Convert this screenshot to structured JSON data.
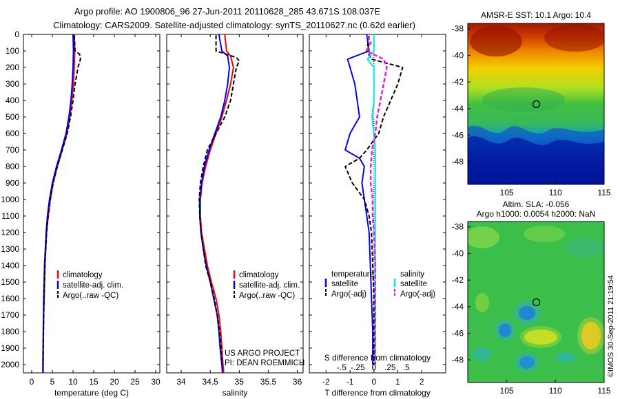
{
  "header": {
    "title_line1": "Argo profile: AO 1900806_96 27-Jun-2011 20110628_285 43.671S 108.037E",
    "title_line2": "Climatology: CARS2009. Satellite-adjusted climatology: synTS_20110627.nc (0.62d earlier)"
  },
  "panels": {
    "temperature": {
      "xlabel": "temperature (deg C)"
    },
    "salinity": {
      "xlabel": "salinity"
    },
    "difference": {
      "xlabel": "T difference from climatology",
      "top_label": "S difference from climatology"
    }
  },
  "legend_tp": {
    "items": [
      "climatology",
      "satellite-adj. clim.",
      "Argo(..raw -QC)"
    ]
  },
  "legend_diff": {
    "temp_head": "temperature",
    "sal_head": "salinity",
    "temp_items": [
      "satellite",
      "Argo(-adj)"
    ],
    "sal_items": [
      "satellite",
      "Argo(-adj)"
    ]
  },
  "project_text": {
    "line1": "US ARGO PROJECT",
    "line2": "PI: DEAN ROEMMICH"
  },
  "maps": {
    "sst_title": "AMSR-E SST: 10.1  Argo: 10.4",
    "sla_title1": "Altim. SLA: -0.056",
    "sla_title2": "Argo h1000: 0.0054 h2000: NaN",
    "marker_lon": 108.037,
    "marker_lat": -43.671
  },
  "imos_stamp": "©IMOS 30-Sep-2011 21:19:54",
  "colors": {
    "climatology": "#ff0000",
    "satellite": "#0000ff",
    "argo": "#000000",
    "sal_satellite": "#00e5e5",
    "sal_argo": "#e020e0"
  },
  "chart_data": [
    {
      "type": "line",
      "panel": "temperature",
      "xlabel": "temperature (deg C)",
      "ylabel": "",
      "xlim": [
        -2,
        31
      ],
      "ylim": [
        2050,
        0
      ],
      "xticks": [
        0,
        5,
        10,
        15,
        20,
        25,
        30
      ],
      "yticks": [
        0,
        100,
        200,
        300,
        400,
        500,
        600,
        700,
        800,
        900,
        1000,
        1100,
        1200,
        1300,
        1400,
        1500,
        1600,
        1700,
        1800,
        1900,
        2000
      ],
      "depth": [
        0,
        100,
        200,
        300,
        400,
        500,
        600,
        700,
        800,
        900,
        1000,
        1100,
        1200,
        1300,
        1400,
        1500,
        1600,
        1700,
        1800,
        1900,
        2000,
        2050
      ],
      "series": [
        {
          "name": "climatology",
          "values": [
            10.3,
            10.4,
            10.3,
            10.1,
            9.7,
            9.2,
            8.5,
            7.4,
            6.2,
            5.2,
            4.5,
            4.0,
            3.6,
            3.4,
            3.2,
            3.1,
            3.0,
            2.9,
            2.85,
            2.8,
            2.8,
            2.8
          ]
        },
        {
          "name": "satellite-adj. clim.",
          "values": [
            10.0,
            10.1,
            10.0,
            9.8,
            9.5,
            9.0,
            8.3,
            7.2,
            6.0,
            5.0,
            4.3,
            3.8,
            3.5,
            3.3,
            3.1,
            3.0,
            2.9,
            2.85,
            2.8,
            2.75,
            2.7,
            2.7
          ]
        },
        {
          "name": "Argo(..raw -QC)",
          "depth": [
            5,
            100,
            120,
            150,
            200,
            300,
            400,
            500,
            600,
            700,
            800,
            900,
            1000,
            1100,
            1200,
            1300,
            1400,
            1500,
            1600,
            1700,
            1800,
            1900,
            2000
          ],
          "values": [
            10.3,
            10.5,
            11.6,
            11.8,
            11.2,
            10.5,
            10.0,
            9.4,
            8.6,
            7.4,
            6.2,
            5.2,
            4.5,
            4.0,
            3.6,
            3.4,
            3.2,
            3.1,
            3.0,
            2.9,
            2.85,
            2.8,
            2.75
          ]
        }
      ]
    },
    {
      "type": "line",
      "panel": "salinity",
      "xlabel": "salinity",
      "ylabel": "",
      "xlim": [
        33.75,
        36.1
      ],
      "ylim": [
        2050,
        0
      ],
      "xticks": [
        34,
        34.5,
        35,
        35.5,
        36
      ],
      "depth": [
        0,
        100,
        130,
        200,
        300,
        400,
        500,
        600,
        700,
        800,
        900,
        1000,
        1100,
        1200,
        1300,
        1400,
        1500,
        1600,
        1700,
        1800,
        1900,
        2000,
        2050
      ],
      "series": [
        {
          "name": "climatology",
          "values": [
            34.75,
            34.78,
            34.85,
            34.9,
            34.85,
            34.78,
            34.7,
            34.6,
            34.5,
            34.42,
            34.36,
            34.33,
            34.33,
            34.35,
            34.4,
            34.45,
            34.52,
            34.6,
            34.65,
            34.68,
            34.7,
            34.72,
            34.73
          ]
        },
        {
          "name": "satellite-adj. clim.",
          "values": [
            34.65,
            34.7,
            34.8,
            34.83,
            34.8,
            34.75,
            34.68,
            34.58,
            34.48,
            34.4,
            34.35,
            34.32,
            34.32,
            34.34,
            34.38,
            34.43,
            34.5,
            34.56,
            34.62,
            34.65,
            34.67,
            34.7,
            34.71
          ]
        },
        {
          "name": "Argo(..raw -QC)",
          "depth": [
            5,
            50,
            100,
            140,
            160,
            200,
            300,
            400,
            500,
            600,
            700,
            800,
            900,
            1000,
            1100,
            1200,
            1300,
            1400,
            1500,
            1600,
            1700,
            1800,
            1900,
            2000
          ],
          "values": [
            34.6,
            34.6,
            34.6,
            34.95,
            35.0,
            34.95,
            34.9,
            34.85,
            34.75,
            34.6,
            34.45,
            34.38,
            34.33,
            34.31,
            34.32,
            34.34,
            34.38,
            34.42,
            34.5,
            34.57,
            34.62,
            34.66,
            34.69,
            34.7
          ]
        }
      ]
    },
    {
      "type": "line",
      "panel": "difference",
      "xlabel": "T difference from climatology",
      "ylabel": "",
      "xlim": [
        -2.7,
        3.0
      ],
      "ylim": [
        2050,
        0
      ],
      "xticks": [
        -2,
        -1,
        0,
        1,
        2
      ],
      "top_axis": {
        "label": "S difference from climatology",
        "ticks": [
          -0.5,
          -0.25,
          0,
          0.25,
          0.5
        ]
      },
      "series": [
        {
          "name": "temperature satellite",
          "depth": [
            0,
            100,
            150,
            200,
            300,
            400,
            500,
            600,
            700,
            750,
            800,
            900,
            1000,
            1100,
            1200,
            1400,
            1600,
            1800,
            2000
          ],
          "values": [
            -0.3,
            -0.2,
            -1.1,
            -1.0,
            -0.8,
            -0.7,
            -0.6,
            -1.0,
            -1.2,
            -0.6,
            -0.4,
            -0.5,
            -0.4,
            -0.3,
            -0.2,
            -0.15,
            -0.1,
            -0.05,
            -0.05
          ]
        },
        {
          "name": "temperature Argo(-adj)",
          "depth": [
            10,
            100,
            150,
            200,
            300,
            400,
            500,
            600,
            700,
            750,
            800,
            900,
            1000,
            1100,
            1200,
            1400,
            1600,
            1800,
            2000
          ],
          "values": [
            -0.2,
            -0.3,
            -0.1,
            1.2,
            1.0,
            0.7,
            0.4,
            0.2,
            -0.3,
            -0.6,
            -1.2,
            -0.9,
            -0.4,
            -0.2,
            -0.1,
            -0.05,
            0,
            0,
            0
          ]
        },
        {
          "name": "salinity satellite",
          "depth": [
            0,
            100,
            150,
            200,
            300,
            400,
            500,
            600,
            700,
            800,
            900,
            1000,
            1200,
            1400,
            1600,
            1800,
            2000
          ],
          "values": [
            0,
            0,
            -0.1,
            0,
            0,
            0,
            -0.03,
            0,
            0.02,
            0.02,
            0.02,
            0.02,
            0.02,
            0.02,
            0.02,
            0.02,
            0.02
          ]
        },
        {
          "name": "salinity Argo(-adj)",
          "depth": [
            10,
            50,
            100,
            150,
            200,
            300,
            400,
            500,
            600,
            700,
            800,
            900,
            1000,
            1100,
            1200,
            1400,
            1600,
            1800,
            2000
          ],
          "values": [
            -0.1,
            -0.05,
            -0.12,
            0.15,
            0.2,
            0.15,
            0.1,
            0.05,
            0.02,
            -0.03,
            -0.05,
            -0.05,
            -0.02,
            -0.02,
            0,
            0.02,
            0.02,
            0.02,
            0.02
          ]
        }
      ]
    },
    {
      "type": "heatmap",
      "panel": "sst_map",
      "title": "AMSR-E SST: 10.1  Argo: 10.4",
      "xlim": [
        101,
        115
      ],
      "ylim": [
        -49.7,
        -37.6
      ],
      "xticks": [
        105,
        110,
        115
      ],
      "yticks": [
        -38,
        -40,
        -42,
        -44,
        -46,
        -48
      ]
    },
    {
      "type": "heatmap",
      "panel": "sla_map",
      "title": "Altim. SLA: -0.056",
      "subtitle": "Argo h1000: 0.0054 h2000: NaN",
      "xlim": [
        101,
        115
      ],
      "ylim": [
        -49.7,
        -37.6
      ],
      "xticks": [
        105,
        110,
        115
      ],
      "yticks": [
        -38,
        -40,
        -42,
        -44,
        -46,
        -48
      ]
    }
  ]
}
